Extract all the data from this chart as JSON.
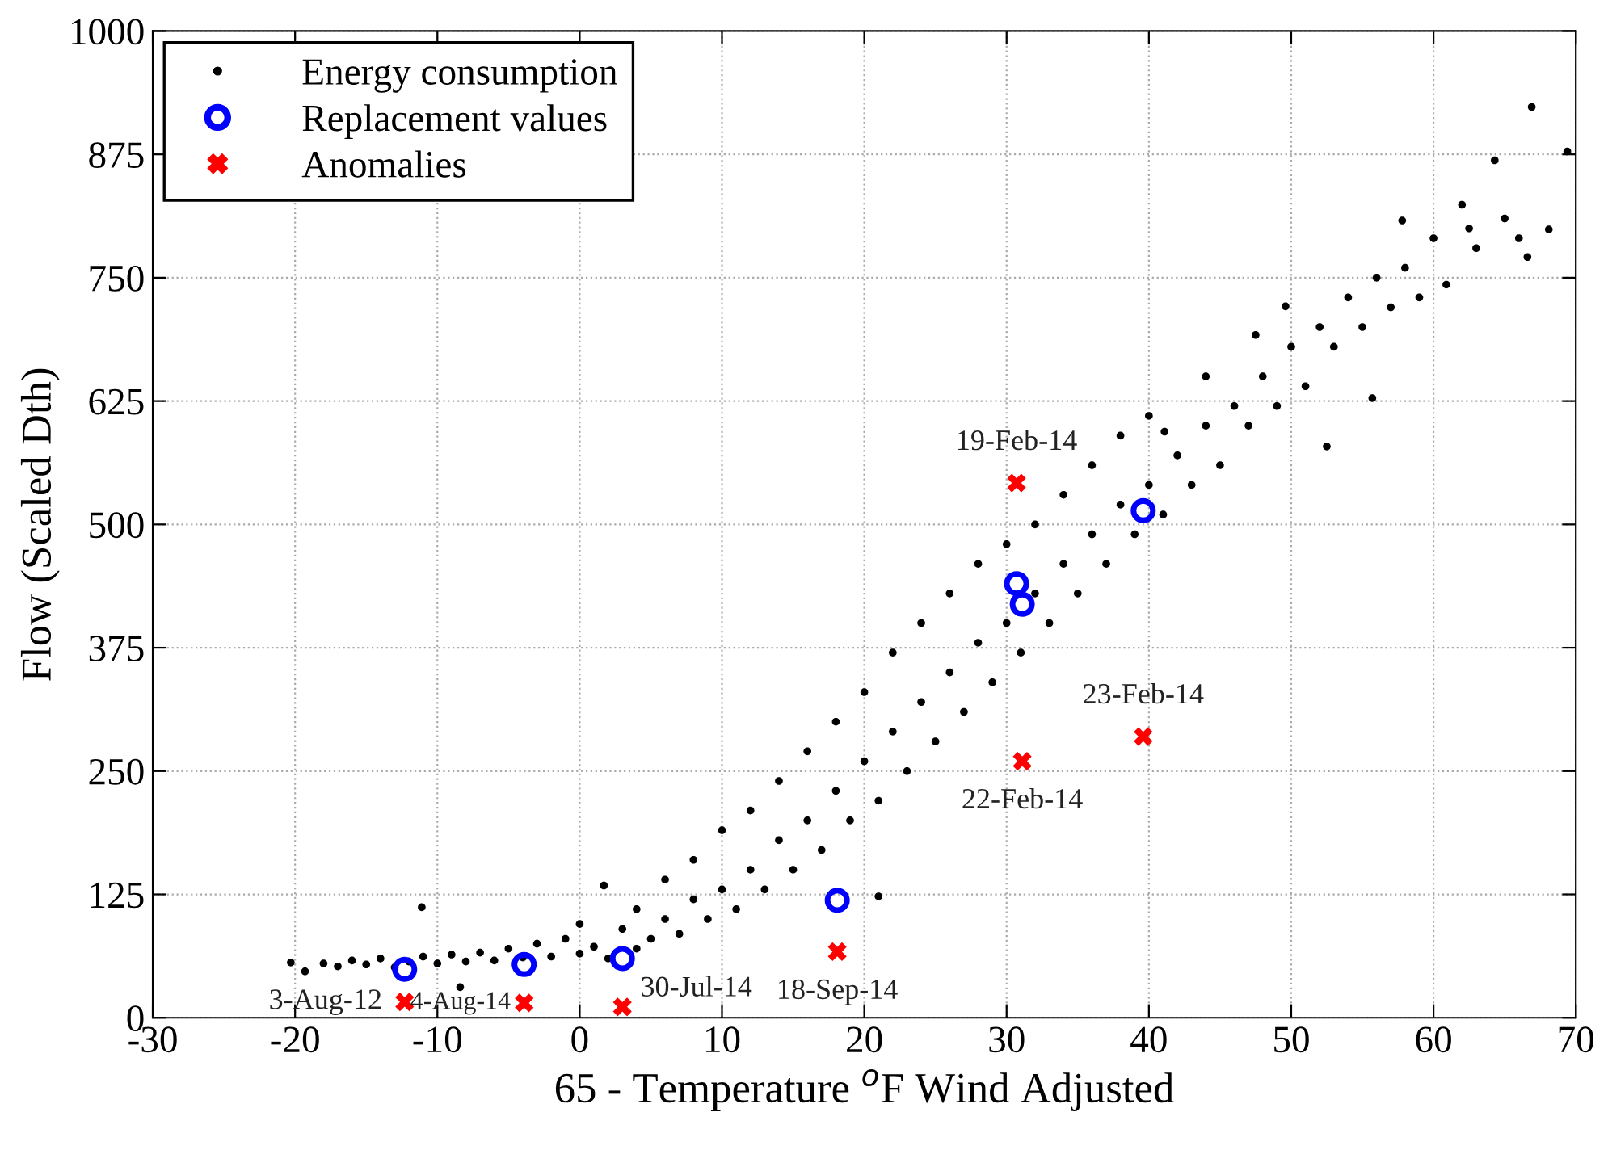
{
  "chart_data": {
    "type": "scatter",
    "xlabel": "65 - Temperature $^{o}$F Wind Adjusted",
    "ylabel": "Flow (Scaled Dth)",
    "xlim": [
      -30,
      70
    ],
    "xticks": [
      -30,
      -20,
      -10,
      0,
      10,
      20,
      30,
      40,
      50,
      60,
      70
    ],
    "ylim": [
      0,
      1000
    ],
    "yticks": [
      0,
      125,
      250,
      375,
      500,
      625,
      750,
      875,
      1000
    ],
    "grid": true,
    "legend": "top left",
    "series": [
      {
        "name": "Energy consumption",
        "color": "#000000",
        "marker": "circle",
        "x": [
          -20.3,
          -19.3,
          -18,
          -17,
          -16,
          -15,
          -14,
          -13,
          -12,
          -11.1,
          -11,
          -10,
          -9,
          -8.4,
          -8,
          -7,
          -6,
          -5,
          -4,
          -3,
          -2,
          -1,
          0,
          0,
          1,
          1.7,
          2,
          3,
          4,
          4,
          5,
          6,
          6,
          7,
          8,
          8,
          9,
          10,
          10,
          11,
          12,
          12,
          13,
          14,
          14,
          15,
          16,
          16,
          17,
          18,
          18,
          19,
          20,
          20,
          21,
          21,
          22,
          22,
          23,
          24,
          24,
          25,
          26,
          26,
          27,
          28,
          28,
          29,
          30,
          30,
          31,
          32,
          32,
          33,
          34,
          34,
          35,
          36,
          36,
          37,
          38,
          38,
          39,
          40,
          40,
          41,
          41.1,
          42,
          43,
          44,
          44,
          45,
          46,
          47,
          47.5,
          48,
          49,
          49.6,
          50,
          51,
          52,
          52.5,
          53,
          54,
          55,
          55.7,
          56,
          57,
          57.8,
          58,
          59,
          60,
          60.9,
          62,
          62.5,
          63,
          64.3,
          65,
          66,
          66.6,
          66.9,
          68.1,
          69.4
        ],
        "values": [
          56,
          47,
          55,
          52,
          58,
          54,
          60,
          51,
          57,
          112,
          62,
          55,
          64,
          31,
          57,
          66,
          58,
          70,
          61,
          75,
          62,
          80,
          65,
          95,
          72,
          134,
          60,
          90,
          70,
          110,
          80,
          100,
          140,
          85,
          120,
          160,
          100,
          130,
          190,
          110,
          150,
          210,
          130,
          180,
          240,
          150,
          200,
          270,
          170,
          230,
          300,
          200,
          260,
          330,
          123,
          220,
          290,
          370,
          250,
          320,
          400,
          280,
          350,
          430,
          310,
          380,
          460,
          340,
          400,
          480,
          370,
          430,
          500,
          400,
          460,
          530,
          430,
          490,
          560,
          460,
          520,
          590,
          490,
          540,
          610,
          510,
          594,
          570,
          540,
          600,
          650,
          560,
          620,
          600,
          692,
          650,
          620,
          721,
          680,
          640,
          700,
          579,
          680,
          730,
          700,
          628,
          750,
          720,
          808,
          760,
          730,
          790,
          743,
          824,
          800,
          780,
          869,
          810,
          790,
          771,
          923,
          799,
          878
        ]
      },
      {
        "name": "Replacement values",
        "color": "#0000ff",
        "marker": "circle",
        "x": [
          -12.3,
          -3.9,
          3.0,
          18.1,
          30.7,
          31.1,
          39.6
        ],
        "values": [
          49,
          54,
          60,
          119,
          440,
          419,
          514
        ]
      },
      {
        "name": "Anomalies",
        "color": "#ff0000",
        "marker": "cross",
        "x": [
          -12.3,
          -3.9,
          3.0,
          18.1,
          30.7,
          31.1,
          39.6
        ],
        "values": [
          16,
          15,
          11,
          67,
          542,
          260,
          285
        ]
      }
    ],
    "annotations": [
      {
        "text": "3-Aug-12",
        "x": -12.3,
        "y": 16
      },
      {
        "text": "4-Aug-14",
        "x": -3.9,
        "y": 15
      },
      {
        "text": "30-Jul-14",
        "x": 3.0,
        "y": 11
      },
      {
        "text": "18-Sep-14",
        "x": 18.1,
        "y": 67
      },
      {
        "text": "19-Feb-14",
        "x": 30.7,
        "y": 542
      },
      {
        "text": "22-Feb-14",
        "x": 31.1,
        "y": 260
      },
      {
        "text": "23-Feb-14",
        "x": 39.6,
        "y": 285
      }
    ]
  }
}
